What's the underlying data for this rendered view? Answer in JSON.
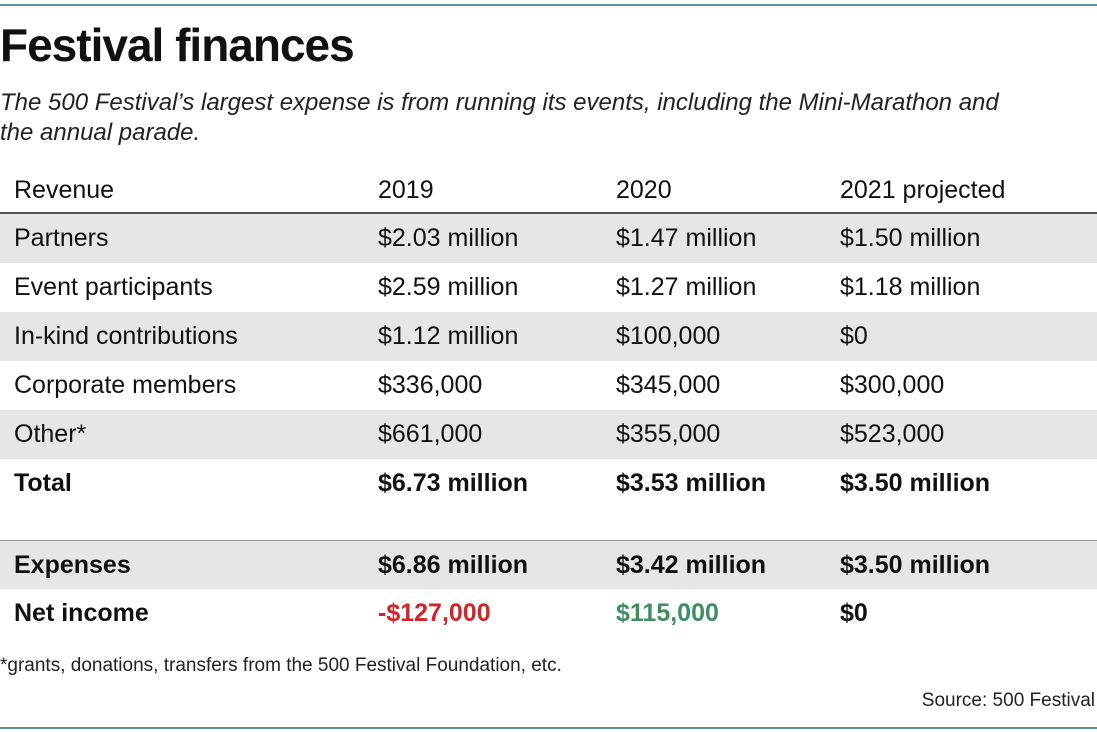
{
  "title": "Festival finances",
  "subtitle": "The 500 Festival’s largest expense is from running its events, including the Mini-Marathon and the annual parade.",
  "chart_data": {
    "type": "table",
    "columns": [
      "Revenue",
      "2019",
      "2020",
      "2021 projected"
    ],
    "revenue_rows": [
      {
        "label": "Partners",
        "values": [
          "$2.03 million",
          "$1.47 million",
          "$1.50 million"
        ]
      },
      {
        "label": "Event participants",
        "values": [
          "$2.59 million",
          "$1.27 million",
          "$1.18 million"
        ]
      },
      {
        "label": "In-kind contributions",
        "values": [
          "$1.12 million",
          "$100,000",
          "$0"
        ]
      },
      {
        "label": "Corporate members",
        "values": [
          "$336,000",
          "$345,000",
          "$300,000"
        ]
      },
      {
        "label": "Other*",
        "values": [
          "$661,000",
          "$355,000",
          "$523,000"
        ]
      }
    ],
    "total": {
      "label": "Total",
      "values": [
        "$6.73 million",
        "$3.53 million",
        "$3.50 million"
      ]
    },
    "expenses": {
      "label": "Expenses",
      "values": [
        "$6.86 million",
        "$3.42 million",
        "$3.50 million"
      ]
    },
    "net_income": {
      "label": "Net income",
      "values": [
        "-$127,000",
        "$115,000",
        "$0"
      ]
    }
  },
  "colors": {
    "negative": "#d3242a",
    "positive": "#3f8f5e",
    "row_shade": "#e6e6e6",
    "rule": "#5b8fa8"
  },
  "footnote": "*grants, donations, transfers from the 500 Festival Foundation, etc.",
  "source": "Source: 500 Festival"
}
